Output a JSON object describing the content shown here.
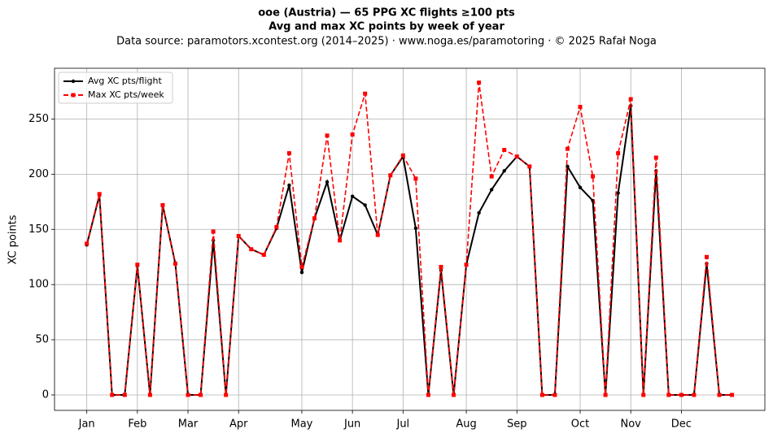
{
  "chart_data": {
    "type": "line",
    "title": "ooe (Austria)  —  65 PPG XC flights ≥100 pts",
    "subtitle": "Avg and max XC points by week of year",
    "note": "Data source: paramotors.xcontest.org (2014–2025)  ·  www.noga.es/paramotoring  ·  © 2025 Rafał Noga",
    "y_label": "XC points",
    "x": [
      1,
      2,
      3,
      4,
      5,
      6,
      7,
      8,
      9,
      10,
      11,
      12,
      13,
      14,
      15,
      16,
      17,
      18,
      19,
      20,
      21,
      22,
      23,
      24,
      25,
      26,
      27,
      28,
      29,
      30,
      31,
      32,
      33,
      34,
      35,
      36,
      37,
      38,
      39,
      40,
      41,
      42,
      43,
      44,
      45,
      46,
      47,
      48,
      49,
      50,
      51,
      52
    ],
    "series": [
      {
        "name": "Avg XC pts/flight",
        "color": "#000000",
        "linestyle": "solid",
        "marker": "circle",
        "values": [
          136,
          181,
          0,
          0,
          117,
          0,
          172,
          119,
          0,
          0,
          140,
          0,
          144,
          132,
          127,
          151,
          190,
          111,
          160,
          193,
          140,
          180,
          172,
          145,
          199,
          216,
          151,
          0,
          113,
          0,
          118,
          165,
          186,
          203,
          216,
          207,
          0,
          0,
          207,
          188,
          176,
          0,
          183,
          262,
          0,
          203,
          0,
          0,
          0,
          119,
          0,
          0
        ]
      },
      {
        "name": "Max XC pts/week",
        "color": "#ff0000",
        "linestyle": "dashed",
        "marker": "square",
        "values": [
          137,
          182,
          0,
          0,
          118,
          0,
          172,
          119,
          0,
          0,
          148,
          0,
          144,
          132,
          127,
          152,
          219,
          116,
          160,
          235,
          140,
          236,
          273,
          145,
          199,
          217,
          196,
          0,
          116,
          0,
          118,
          283,
          198,
          222,
          216,
          207,
          0,
          0,
          223,
          261,
          198,
          0,
          219,
          268,
          0,
          215,
          0,
          0,
          0,
          125,
          0,
          0
        ]
      }
    ],
    "xlim": [
      -1.55,
      54.6
    ],
    "xticks": [
      {
        "value": 1,
        "label": "Jan"
      },
      {
        "value": 5,
        "label": "Feb"
      },
      {
        "value": 9,
        "label": "Mar"
      },
      {
        "value": 13,
        "label": "Apr"
      },
      {
        "value": 18,
        "label": "May"
      },
      {
        "value": 22,
        "label": "Jun"
      },
      {
        "value": 26,
        "label": "Jul"
      },
      {
        "value": 31,
        "label": "Aug"
      },
      {
        "value": 35,
        "label": "Sep"
      },
      {
        "value": 40,
        "label": "Oct"
      },
      {
        "value": 44,
        "label": "Nov"
      },
      {
        "value": 48,
        "label": "Dec"
      }
    ],
    "ylim": [
      -14,
      296
    ],
    "yticks": [
      0,
      50,
      100,
      150,
      200,
      250
    ],
    "grid": true,
    "legend": "upper left"
  }
}
